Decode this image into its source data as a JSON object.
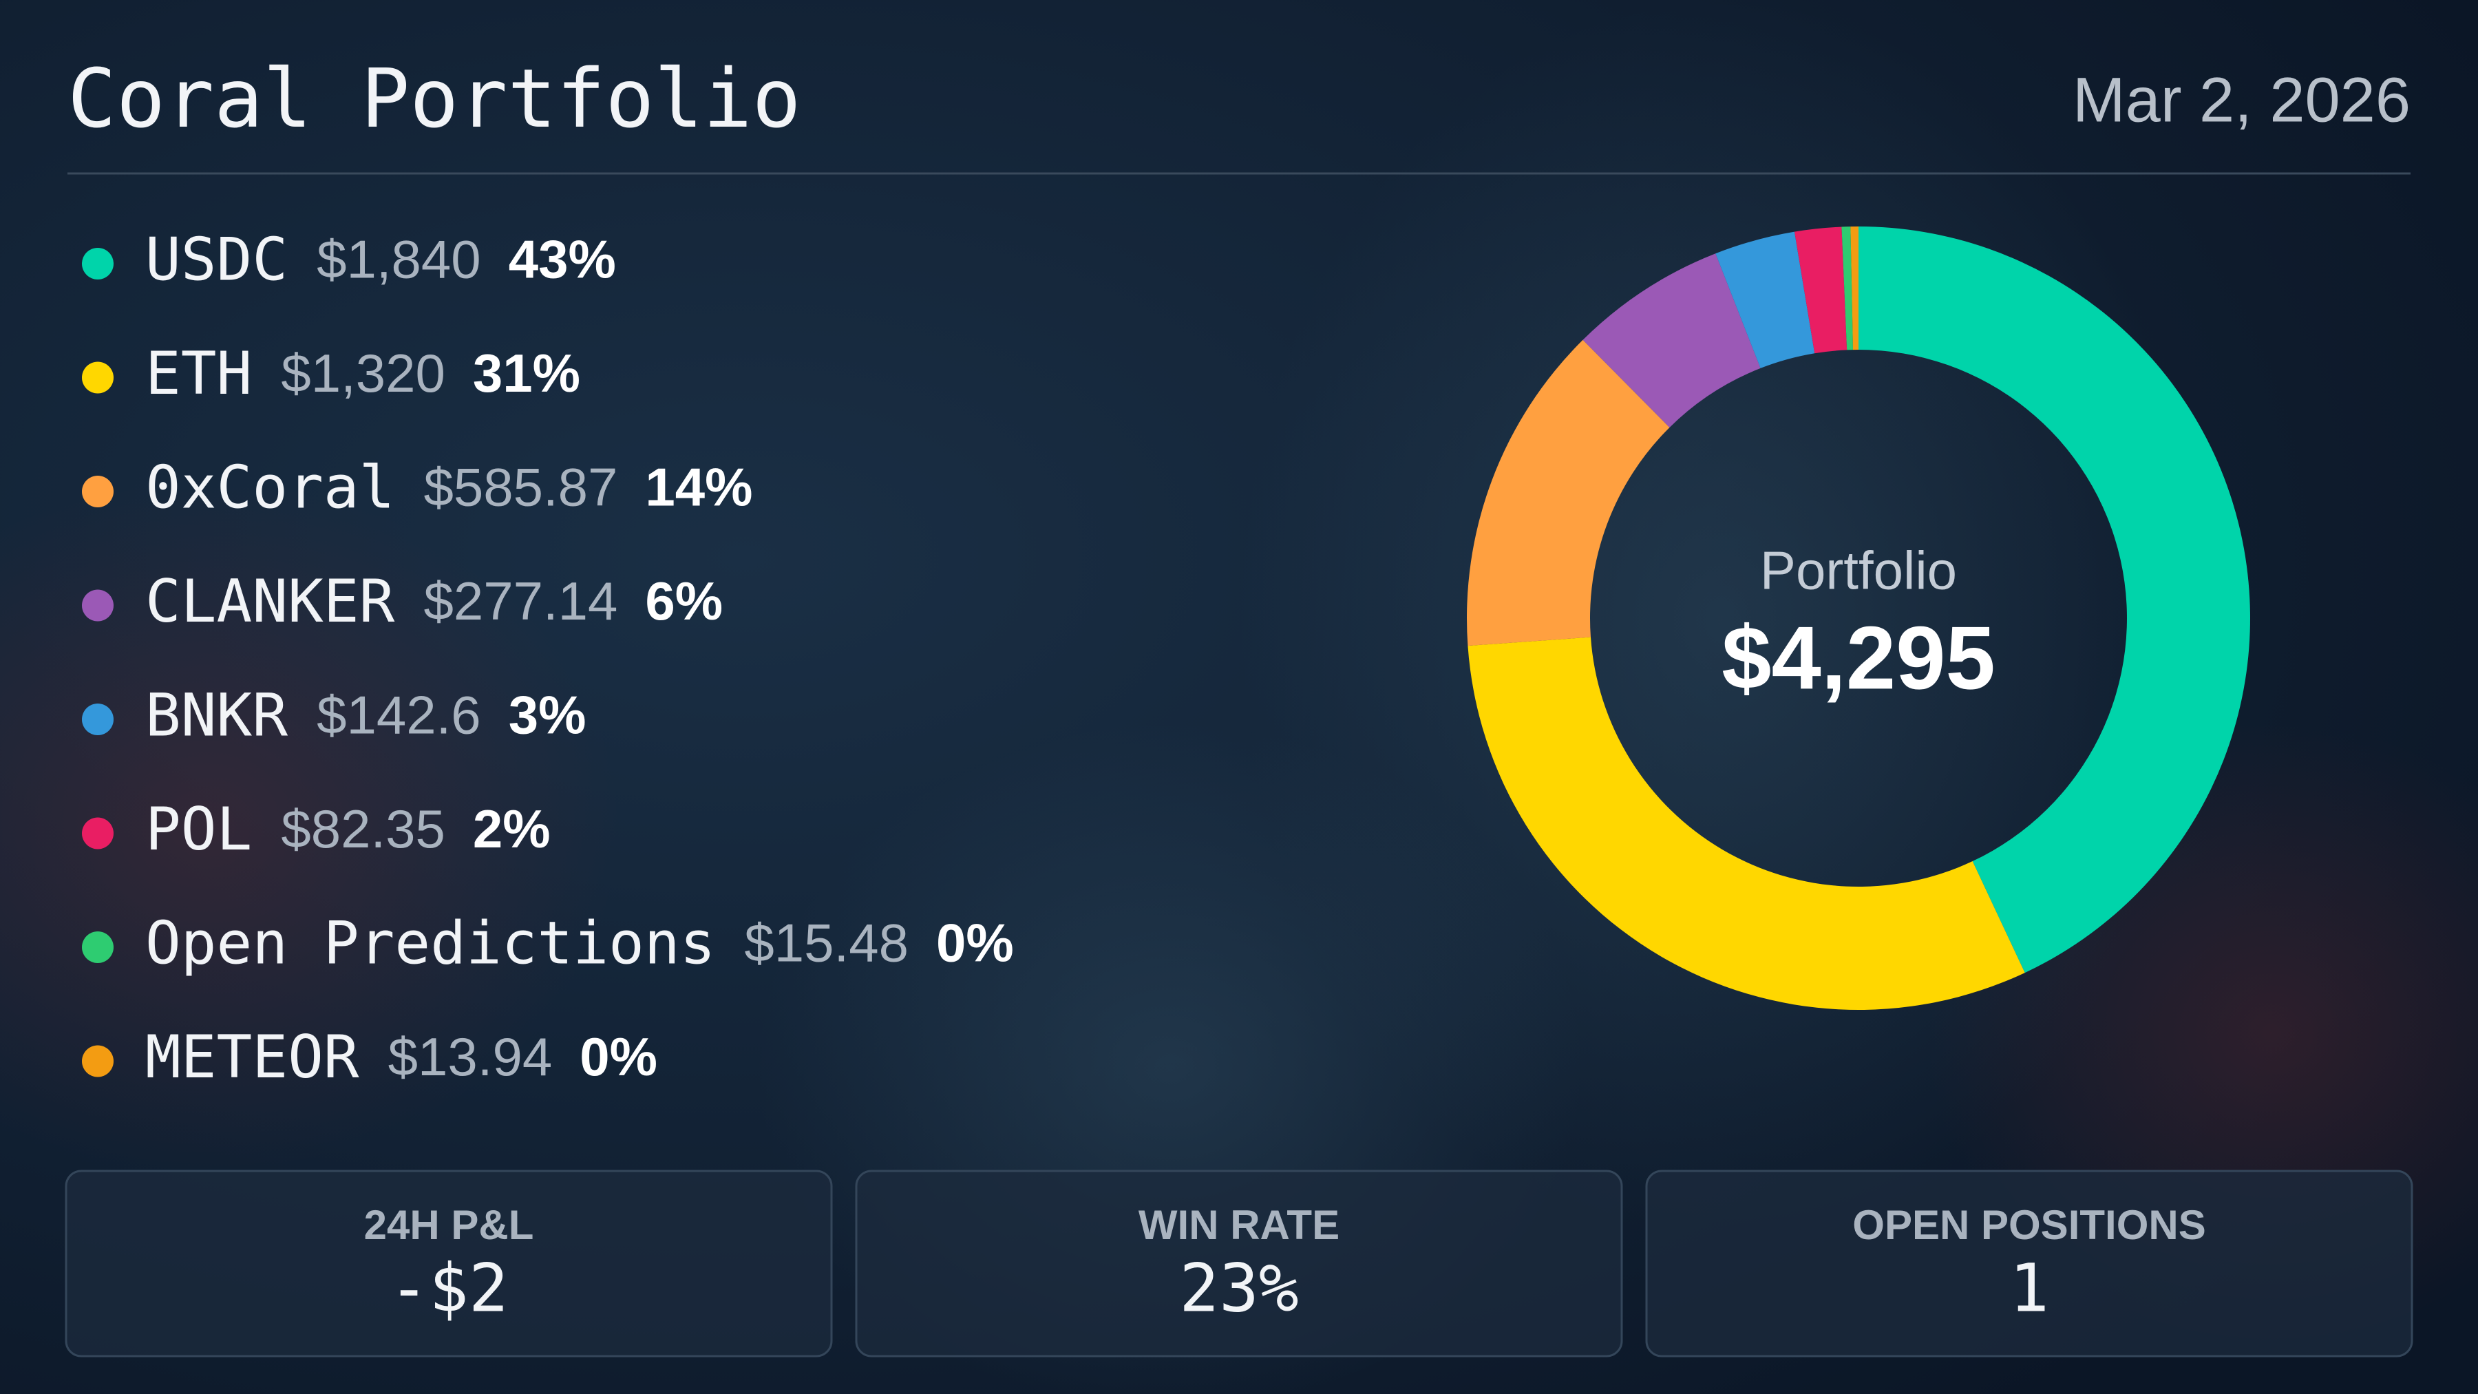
{
  "header": {
    "title": "Coral Portfolio",
    "date": "Mar 2, 2026"
  },
  "chart_data": {
    "type": "donut",
    "categories": [
      "USDC",
      "ETH",
      "0xCoral",
      "CLANKER",
      "BNKR",
      "POL",
      "Open Predictions",
      "METEOR"
    ],
    "values": [
      1840,
      1320,
      585.87,
      277.14,
      142.6,
      82.35,
      15.48,
      13.94
    ],
    "value_labels": [
      "$1,840",
      "$1,320",
      "$585.87",
      "$277.14",
      "$142.6",
      "$82.35",
      "$15.48",
      "$13.94"
    ],
    "percent_labels": [
      "43%",
      "31%",
      "14%",
      "6%",
      "3%",
      "2%",
      "0%",
      "0%"
    ],
    "colors": [
      "#00d4aa",
      "#ffd700",
      "#ffa040",
      "#9b59b6",
      "#3498db",
      "#e91e63",
      "#2ecc71",
      "#f39c12"
    ],
    "center_title": "Portfolio",
    "center_value": "$4,295"
  },
  "stats": [
    {
      "label": "24H P&L",
      "value": "-$2"
    },
    {
      "label": "WIN RATE",
      "value": "23%"
    },
    {
      "label": "OPEN POSITIONS",
      "value": 1
    }
  ]
}
